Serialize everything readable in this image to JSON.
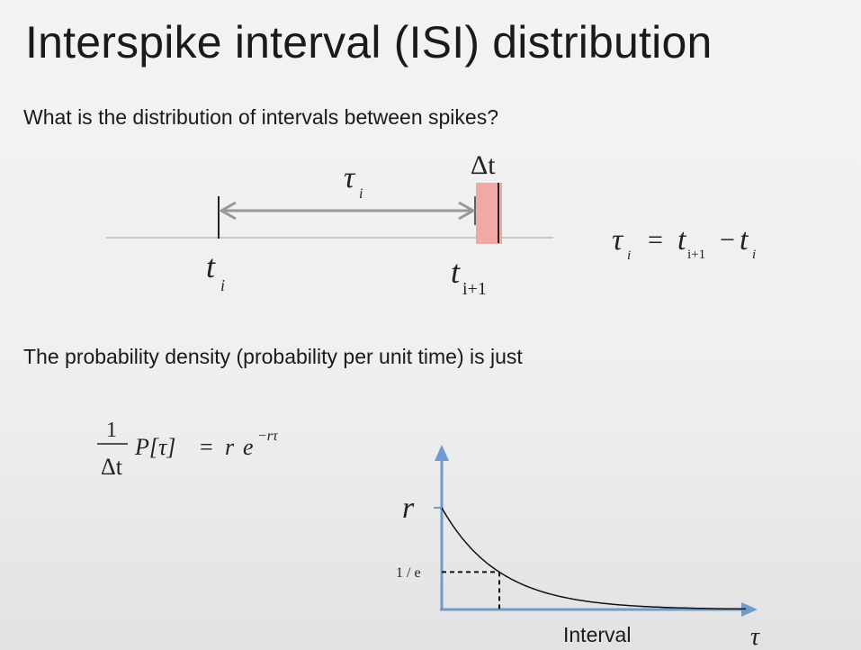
{
  "slide": {
    "title": "Interspike interval (ISI) distribution",
    "question": "What is the distribution of intervals between spikes?",
    "density_text": "The probability density (probability per unit time) is just"
  },
  "diagram": {
    "delta_t_label": "Δt",
    "tau_label": "τ",
    "tau_sub": "i",
    "t_i_label": "t",
    "t_i_sub": "i",
    "t_next_label": "t",
    "t_next_sub": "i+1",
    "window_color": "#f0a9a5"
  },
  "formulas": {
    "isi": {
      "lhs": "τ",
      "lhs_sub": "i",
      "eq": "=",
      "t1": "t",
      "t1_sub": "i+1",
      "minus": "−",
      "t2": "t",
      "t2_sub": "i"
    },
    "density": {
      "num": "1",
      "den": "Δt",
      "p": "P[τ]",
      "eq": "=",
      "r": "r",
      "e": "e",
      "exp": "−rτ"
    }
  },
  "chart_data": {
    "type": "line",
    "function": "r·e^(−r·τ)",
    "y_tick_labels": [
      "r",
      "1 / e"
    ],
    "marked_x": "1/r",
    "xlabel": "Interval",
    "x_axis_symbol": "τ",
    "axis_color": "#6f9ccc"
  }
}
